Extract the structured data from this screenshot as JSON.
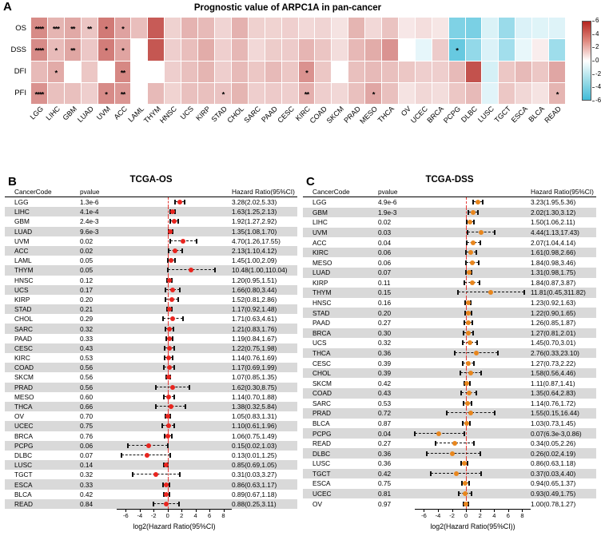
{
  "chart_data": [
    {
      "type": "heatmap",
      "panel_label": "A",
      "title": "Prognostic value of ARPC1A in pan-cancer",
      "rows": [
        "OS",
        "DSS",
        "DFI",
        "PFI"
      ],
      "columns": [
        "LGG",
        "LIHC",
        "GBM",
        "LUAD",
        "UVM",
        "ACC",
        "LAML",
        "THYM",
        "HNSC",
        "UCS",
        "KIRP",
        "STAD",
        "CHOL",
        "SARC",
        "PAAD",
        "CESC",
        "KIRC",
        "COAD",
        "SKCM",
        "PRAD",
        "MESO",
        "THCA",
        "OV",
        "UCEC",
        "BRCA",
        "PCPG",
        "DLBC",
        "LUSC",
        "TGCT",
        "ESCA",
        "BLCA",
        "READ"
      ],
      "values": [
        [
          1.71,
          0.7,
          0.94,
          0.43,
          2.23,
          1.09,
          0.54,
          3.39,
          0.26,
          0.73,
          0.6,
          0.23,
          0.77,
          0.27,
          0.25,
          0.29,
          0.19,
          0.23,
          0.1,
          0.7,
          0.19,
          0.46,
          0.07,
          0.14,
          0.08,
          -2.74,
          -2.94,
          -0.23,
          -1.69,
          -0.22,
          -0.17,
          -0.18
        ],
        [
          1.69,
          0.58,
          1.01,
          0.39,
          2.15,
          1.05,
          null,
          3.56,
          0.3,
          0.54,
          0.88,
          0.29,
          0.66,
          0.19,
          0.33,
          0.34,
          0.69,
          0.43,
          0.15,
          0.63,
          0.88,
          1.46,
          0.0,
          -0.1,
          0.34,
          -3.84,
          -1.94,
          -0.22,
          -1.43,
          -0.09,
          0.04,
          -1.56
        ],
        [
          0.6,
          0.9,
          null,
          0.4,
          null,
          1.8,
          null,
          null,
          0.3,
          0.5,
          0.7,
          0.3,
          0.6,
          0.4,
          0.6,
          0.4,
          1.5,
          0.4,
          null,
          0.5,
          0.6,
          0.5,
          0.4,
          0.3,
          0.3,
          0.6,
          3.8,
          -0.3,
          0.4,
          0.6,
          0.4,
          1.0
        ],
        [
          1.5,
          0.5,
          0.5,
          0.3,
          1.7,
          1.4,
          null,
          0.6,
          0.25,
          0.5,
          0.5,
          0.45,
          0.7,
          0.3,
          0.35,
          0.3,
          0.8,
          0.3,
          0.2,
          0.5,
          1.0,
          0.5,
          0.1,
          0.2,
          0.15,
          0.4,
          0.6,
          -0.15,
          0.4,
          0.2,
          0.1,
          0.7
        ]
      ],
      "stars": [
        [
          "****",
          "***",
          "**",
          "**",
          "*",
          "*",
          "",
          "",
          "",
          "",
          "",
          "",
          "",
          "",
          "",
          "",
          "",
          "",
          "",
          "",
          "",
          "",
          "",
          "",
          "",
          "",
          "",
          "",
          "",
          "",
          "",
          ""
        ],
        [
          "****",
          "*",
          "**",
          "",
          "*",
          "*",
          "",
          "",
          "",
          "",
          "",
          "",
          "",
          "",
          "",
          "",
          "",
          "",
          "",
          "",
          "",
          "",
          "",
          "",
          "",
          "*",
          "",
          "",
          "",
          "",
          "",
          ""
        ],
        [
          "",
          "*",
          "",
          "",
          "",
          "**",
          "",
          "",
          "",
          "",
          "",
          "",
          "",
          "",
          "",
          "",
          "*",
          "",
          "",
          "",
          "",
          "",
          "",
          "",
          "",
          "",
          "",
          "",
          "",
          "",
          "",
          ""
        ],
        [
          "****",
          "",
          "",
          "",
          "*",
          "**",
          "",
          "",
          "",
          "",
          "",
          "*",
          "",
          "",
          "",
          "",
          "**",
          "",
          "",
          "",
          "*",
          "",
          "",
          "",
          "",
          "",
          "",
          "",
          "",
          "",
          "",
          "*"
        ]
      ],
      "colorbar": {
        "ticks": [
          "6",
          "4",
          "2",
          "0",
          "-2",
          "-4",
          "-6"
        ],
        "max": 6,
        "min": -6,
        "high_color": "#b4251f",
        "low_color": "#41bcd8"
      }
    },
    {
      "type": "scatter",
      "panel_label": "B",
      "title": "TCGA-OS",
      "col_headers": [
        "CancerCode",
        "pvalue",
        "Hazard Ratio(95%CI)"
      ],
      "xlabel": "log2(Hazard Ratio(95%CI)",
      "x_ticks": [
        -6,
        -4,
        -2,
        0,
        2,
        4,
        6,
        8
      ],
      "xlim": [
        -7.3,
        9.2
      ],
      "ref_line": 0,
      "marker_color": "#e8251f",
      "rows": [
        {
          "code": "LGG",
          "pvalue": "1.3e-6",
          "ci": "3.28(2.02,5.33)",
          "hr": 3.28,
          "lo": 2.02,
          "hi": 5.33
        },
        {
          "code": "LIHC",
          "pvalue": "4.1e-4",
          "ci": "1.63(1.25,2.13)",
          "hr": 1.63,
          "lo": 1.25,
          "hi": 2.13
        },
        {
          "code": "GBM",
          "pvalue": "2.4e-3",
          "ci": "1.92(1.27,2.92)",
          "hr": 1.92,
          "lo": 1.27,
          "hi": 2.92
        },
        {
          "code": "LUAD",
          "pvalue": "9.6e-3",
          "ci": "1.35(1.08,1.70)",
          "hr": 1.35,
          "lo": 1.08,
          "hi": 1.7
        },
        {
          "code": "UVM",
          "pvalue": "0.02",
          "ci": "4.70(1.26,17.55)",
          "hr": 4.7,
          "lo": 1.26,
          "hi": 17.55
        },
        {
          "code": "ACC",
          "pvalue": "0.02",
          "ci": "2.13(1.10,4.12)",
          "hr": 2.13,
          "lo": 1.1,
          "hi": 4.12
        },
        {
          "code": "LAML",
          "pvalue": "0.05",
          "ci": "1.45(1.00,2.09)",
          "hr": 1.45,
          "lo": 1.0,
          "hi": 2.09
        },
        {
          "code": "THYM",
          "pvalue": "0.05",
          "ci": "10.48(1.00,110.04)",
          "hr": 10.48,
          "lo": 1.0,
          "hi": 110.04
        },
        {
          "code": "HNSC",
          "pvalue": "0.12",
          "ci": "1.20(0.95,1.51)",
          "hr": 1.2,
          "lo": 0.95,
          "hi": 1.51
        },
        {
          "code": "UCS",
          "pvalue": "0.17",
          "ci": "1.66(0.80,3.44)",
          "hr": 1.66,
          "lo": 0.8,
          "hi": 3.44
        },
        {
          "code": "KIRP",
          "pvalue": "0.20",
          "ci": "1.52(0.81,2.86)",
          "hr": 1.52,
          "lo": 0.81,
          "hi": 2.86
        },
        {
          "code": "STAD",
          "pvalue": "0.21",
          "ci": "1.17(0.92,1.48)",
          "hr": 1.17,
          "lo": 0.92,
          "hi": 1.48
        },
        {
          "code": "CHOL",
          "pvalue": "0.29",
          "ci": "1.71(0.63,4.61)",
          "hr": 1.71,
          "lo": 0.63,
          "hi": 4.61
        },
        {
          "code": "SARC",
          "pvalue": "0.32",
          "ci": "1.21(0.83,1.76)",
          "hr": 1.21,
          "lo": 0.83,
          "hi": 1.76
        },
        {
          "code": "PAAD",
          "pvalue": "0.33",
          "ci": "1.19(0.84,1.67)",
          "hr": 1.19,
          "lo": 0.84,
          "hi": 1.67
        },
        {
          "code": "CESC",
          "pvalue": "0.43",
          "ci": "1.22(0.75,1.98)",
          "hr": 1.22,
          "lo": 0.75,
          "hi": 1.98
        },
        {
          "code": "KIRC",
          "pvalue": "0.53",
          "ci": "1.14(0.76,1.69)",
          "hr": 1.14,
          "lo": 0.76,
          "hi": 1.69
        },
        {
          "code": "COAD",
          "pvalue": "0.56",
          "ci": "1.17(0.69,1.99)",
          "hr": 1.17,
          "lo": 0.69,
          "hi": 1.99
        },
        {
          "code": "SKCM",
          "pvalue": "0.56",
          "ci": "1.07(0.85,1.35)",
          "hr": 1.07,
          "lo": 0.85,
          "hi": 1.35
        },
        {
          "code": "PRAD",
          "pvalue": "0.56",
          "ci": "1.62(0.30,8.75)",
          "hr": 1.62,
          "lo": 0.3,
          "hi": 8.75
        },
        {
          "code": "MESO",
          "pvalue": "0.60",
          "ci": "1.14(0.70,1.88)",
          "hr": 1.14,
          "lo": 0.7,
          "hi": 1.88
        },
        {
          "code": "THCA",
          "pvalue": "0.66",
          "ci": "1.38(0.32,5.84)",
          "hr": 1.38,
          "lo": 0.32,
          "hi": 5.84
        },
        {
          "code": "OV",
          "pvalue": "0.70",
          "ci": "1.05(0.83,1.31)",
          "hr": 1.05,
          "lo": 0.83,
          "hi": 1.31
        },
        {
          "code": "UCEC",
          "pvalue": "0.75",
          "ci": "1.10(0.61,1.96)",
          "hr": 1.1,
          "lo": 0.61,
          "hi": 1.96
        },
        {
          "code": "BRCA",
          "pvalue": "0.76",
          "ci": "1.06(0.75,1.49)",
          "hr": 1.06,
          "lo": 0.75,
          "hi": 1.49
        },
        {
          "code": "PCPG",
          "pvalue": "0.06",
          "ci": "0.15(0.02,1.03)",
          "hr": 0.15,
          "lo": 0.02,
          "hi": 1.03
        },
        {
          "code": "DLBC",
          "pvalue": "0.07",
          "ci": "0.13(0.01,1.25)",
          "hr": 0.13,
          "lo": 0.01,
          "hi": 1.25
        },
        {
          "code": "LUSC",
          "pvalue": "0.14",
          "ci": "0.85(0.69,1.05)",
          "hr": 0.85,
          "lo": 0.69,
          "hi": 1.05
        },
        {
          "code": "TGCT",
          "pvalue": "0.32",
          "ci": "0.31(0.03,3.27)",
          "hr": 0.31,
          "lo": 0.03,
          "hi": 3.27
        },
        {
          "code": "ESCA",
          "pvalue": "0.33",
          "ci": "0.86(0.63,1.17)",
          "hr": 0.86,
          "lo": 0.63,
          "hi": 1.17
        },
        {
          "code": "BLCA",
          "pvalue": "0.42",
          "ci": "0.89(0.67,1.18)",
          "hr": 0.89,
          "lo": 0.67,
          "hi": 1.18
        },
        {
          "code": "READ",
          "pvalue": "0.84",
          "ci": "0.88(0.25,3.11)",
          "hr": 0.88,
          "lo": 0.25,
          "hi": 3.11
        }
      ]
    },
    {
      "type": "scatter",
      "panel_label": "C",
      "title": "TCGA-DSS",
      "col_headers": [
        "CancerCode",
        "pvalue",
        "Hazard Ratio(95%CI)"
      ],
      "xlabel": "log2(Hazard Ratio(95%CI))",
      "x_ticks": [
        -6,
        -4,
        -2,
        0,
        2,
        4,
        6,
        8
      ],
      "xlim": [
        -7.3,
        9.2
      ],
      "ref_line": 0,
      "marker_color": "#e8861d",
      "rows": [
        {
          "code": "LGG",
          "pvalue": "4.9e-6",
          "ci": "3.23(1.95,5.36)",
          "hr": 3.23,
          "lo": 1.95,
          "hi": 5.36
        },
        {
          "code": "GBM",
          "pvalue": "1.9e-3",
          "ci": "2.02(1.30,3.12)",
          "hr": 2.02,
          "lo": 1.3,
          "hi": 3.12
        },
        {
          "code": "LIHC",
          "pvalue": "0.02",
          "ci": "1.50(1.06,2.11)",
          "hr": 1.5,
          "lo": 1.06,
          "hi": 2.11
        },
        {
          "code": "UVM",
          "pvalue": "0.03",
          "ci": "4.44(1.13,17.43)",
          "hr": 4.44,
          "lo": 1.13,
          "hi": 17.43
        },
        {
          "code": "ACC",
          "pvalue": "0.04",
          "ci": "2.07(1.04,4.14)",
          "hr": 2.07,
          "lo": 1.04,
          "hi": 4.14
        },
        {
          "code": "KIRC",
          "pvalue": "0.06",
          "ci": "1.61(0.98,2.66)",
          "hr": 1.61,
          "lo": 0.98,
          "hi": 2.66
        },
        {
          "code": "MESO",
          "pvalue": "0.06",
          "ci": "1.84(0.98,3.46)",
          "hr": 1.84,
          "lo": 0.98,
          "hi": 3.46
        },
        {
          "code": "LUAD",
          "pvalue": "0.07",
          "ci": "1.31(0.98,1.75)",
          "hr": 1.31,
          "lo": 0.98,
          "hi": 1.75
        },
        {
          "code": "KIRP",
          "pvalue": "0.11",
          "ci": "1.84(0.87,3.87)",
          "hr": 1.84,
          "lo": 0.87,
          "hi": 3.87
        },
        {
          "code": "THYM",
          "pvalue": "0.15",
          "ci": "11.81(0.45,311.82)",
          "hr": 11.81,
          "lo": 0.45,
          "hi": 311.82
        },
        {
          "code": "HNSC",
          "pvalue": "0.16",
          "ci": "1.23(0.92,1.63)",
          "hr": 1.23,
          "lo": 0.92,
          "hi": 1.63
        },
        {
          "code": "STAD",
          "pvalue": "0.20",
          "ci": "1.22(0.90,1.65)",
          "hr": 1.22,
          "lo": 0.9,
          "hi": 1.65
        },
        {
          "code": "PAAD",
          "pvalue": "0.27",
          "ci": "1.26(0.85,1.87)",
          "hr": 1.26,
          "lo": 0.85,
          "hi": 1.87
        },
        {
          "code": "BRCA",
          "pvalue": "0.30",
          "ci": "1.27(0.81,2.01)",
          "hr": 1.27,
          "lo": 0.81,
          "hi": 2.01
        },
        {
          "code": "UCS",
          "pvalue": "0.32",
          "ci": "1.45(0.70,3.01)",
          "hr": 1.45,
          "lo": 0.7,
          "hi": 3.01
        },
        {
          "code": "THCA",
          "pvalue": "0.36",
          "ci": "2.76(0.33,23.10)",
          "hr": 2.76,
          "lo": 0.33,
          "hi": 23.1
        },
        {
          "code": "CESC",
          "pvalue": "0.39",
          "ci": "1.27(0.73,2.22)",
          "hr": 1.27,
          "lo": 0.73,
          "hi": 2.22
        },
        {
          "code": "CHOL",
          "pvalue": "0.39",
          "ci": "1.58(0.56,4.46)",
          "hr": 1.58,
          "lo": 0.56,
          "hi": 4.46
        },
        {
          "code": "SKCM",
          "pvalue": "0.42",
          "ci": "1.11(0.87,1.41)",
          "hr": 1.11,
          "lo": 0.87,
          "hi": 1.41
        },
        {
          "code": "COAD",
          "pvalue": "0.43",
          "ci": "1.35(0.64,2.83)",
          "hr": 1.35,
          "lo": 0.64,
          "hi": 2.83
        },
        {
          "code": "SARC",
          "pvalue": "0.53",
          "ci": "1.14(0.76,1.72)",
          "hr": 1.14,
          "lo": 0.76,
          "hi": 1.72
        },
        {
          "code": "PRAD",
          "pvalue": "0.72",
          "ci": "1.55(0.15,16.44)",
          "hr": 1.55,
          "lo": 0.15,
          "hi": 16.44
        },
        {
          "code": "BLCA",
          "pvalue": "0.87",
          "ci": "1.03(0.73,1.45)",
          "hr": 1.03,
          "lo": 0.73,
          "hi": 1.45
        },
        {
          "code": "PCPG",
          "pvalue": "0.04",
          "ci": "0.07(6.3e-3,0.86)",
          "hr": 0.07,
          "lo": 0.0063,
          "hi": 0.86
        },
        {
          "code": "READ",
          "pvalue": "0.27",
          "ci": "0.34(0.05,2.26)",
          "hr": 0.34,
          "lo": 0.05,
          "hi": 2.26
        },
        {
          "code": "DLBC",
          "pvalue": "0.36",
          "ci": "0.26(0.02,4.19)",
          "hr": 0.26,
          "lo": 0.02,
          "hi": 4.19
        },
        {
          "code": "LUSC",
          "pvalue": "0.36",
          "ci": "0.86(0.63,1.18)",
          "hr": 0.86,
          "lo": 0.63,
          "hi": 1.18
        },
        {
          "code": "TGCT",
          "pvalue": "0.42",
          "ci": "0.37(0.03,4.40)",
          "hr": 0.37,
          "lo": 0.03,
          "hi": 4.4
        },
        {
          "code": "ESCA",
          "pvalue": "0.75",
          "ci": "0.94(0.65,1.37)",
          "hr": 0.94,
          "lo": 0.65,
          "hi": 1.37
        },
        {
          "code": "UCEC",
          "pvalue": "0.81",
          "ci": "0.93(0.49,1.75)",
          "hr": 0.93,
          "lo": 0.49,
          "hi": 1.75
        },
        {
          "code": "OV",
          "pvalue": "0.97",
          "ci": "1.00(0.78,1.27)",
          "hr": 1.0,
          "lo": 0.78,
          "hi": 1.27
        }
      ]
    }
  ]
}
